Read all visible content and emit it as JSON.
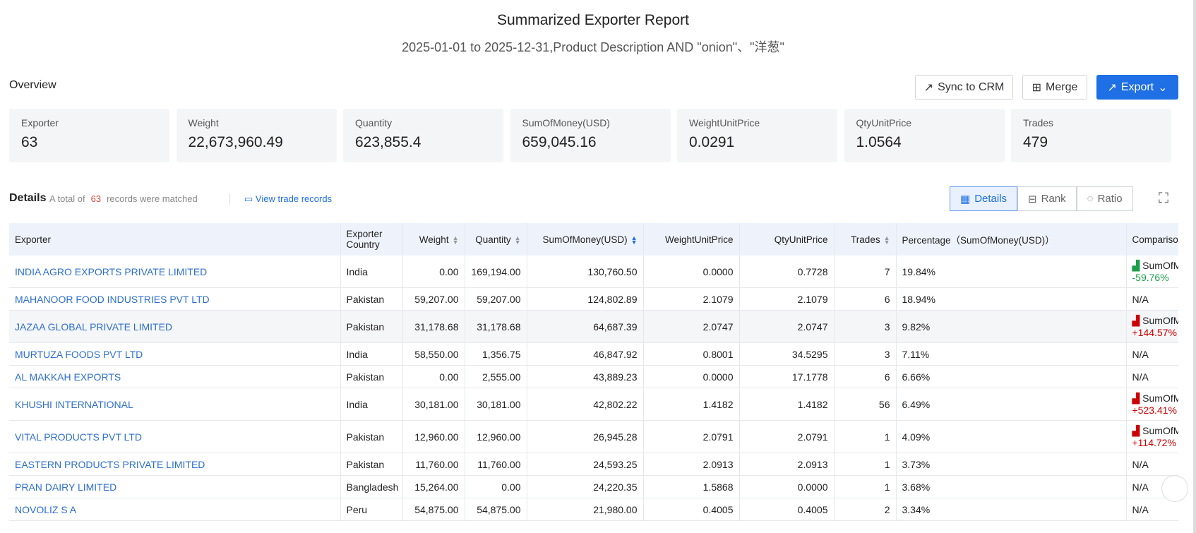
{
  "header": {
    "title": "Summarized Exporter Report",
    "subtitle": "2025-01-01 to 2025-12-31,Product Description AND \"onion\"、\"洋葱\""
  },
  "overview": {
    "label": "Overview",
    "buttons": [
      "Sync to CRM",
      "Merge",
      "Export"
    ],
    "cards": [
      {
        "label": "Exporter",
        "value": "63"
      },
      {
        "label": "Weight",
        "value": "22,673,960.49"
      },
      {
        "label": "Quantity",
        "value": "623,855.4"
      },
      {
        "label": "SumOfMoney(USD)",
        "value": "659,045.16"
      },
      {
        "label": "WeightUnitPrice",
        "value": "0.0291"
      },
      {
        "label": "QtyUnitPrice",
        "value": "1.0564"
      },
      {
        "label": "Trades",
        "value": "479"
      }
    ]
  },
  "details": {
    "label": "Details",
    "total_prefix": "A total of",
    "total": "63",
    "total_suffix": "records were matched",
    "link": "View trade records",
    "tabs": [
      "Details",
      "Rank",
      "Ratio"
    ]
  },
  "table": {
    "columns": [
      "Exporter",
      "Exporter Country",
      "Weight",
      "Quantity",
      "SumOfMoney(USD)",
      "WeightUnitPrice",
      "QtyUnitPrice",
      "Trades",
      "Percentage（SumOfMoney(USD)）",
      "Comparison"
    ],
    "rows": [
      [
        "INDIA AGRO EXPORTS PRIVATE LIMITED",
        "India",
        "0.00",
        "169,194.00",
        "130,760.50",
        "0.0000",
        "0.7728",
        "7",
        "19.84%",
        {
          "label": "SumOfMoney(USD)",
          "change": "-59.76%"
        }
      ],
      [
        "MAHANOOR FOOD INDUSTRIES PVT LTD",
        "Pakistan",
        "59,207.00",
        "59,207.00",
        "124,802.89",
        "2.1079",
        "2.1079",
        "6",
        "18.94%",
        "N/A"
      ],
      [
        "JAZAA GLOBAL PRIVATE LIMITED",
        "Pakistan",
        "31,178.68",
        "31,178.68",
        "64,687.39",
        "2.0747",
        "2.0747",
        "3",
        "9.82%",
        {
          "label": "SumOfMoney(USD)",
          "change": "+144.57%"
        }
      ],
      [
        "MURTUZA FOODS PVT LTD",
        "India",
        "58,550.00",
        "1,356.75",
        "46,847.92",
        "0.8001",
        "34.5295",
        "3",
        "7.11%",
        "N/A"
      ],
      [
        "AL MAKKAH EXPORTS",
        "Pakistan",
        "0.00",
        "2,555.00",
        "43,889.23",
        "0.0000",
        "17.1778",
        "6",
        "6.66%",
        "N/A"
      ],
      [
        "KHUSHI INTERNATIONAL",
        "India",
        "30,181.00",
        "30,181.00",
        "42,802.22",
        "1.4182",
        "1.4182",
        "56",
        "6.49%",
        {
          "label": "SumOfMoney(USD)",
          "change": "+523.41%"
        }
      ],
      [
        "VITAL PRODUCTS PVT LTD",
        "Pakistan",
        "12,960.00",
        "12,960.00",
        "26,945.28",
        "2.0791",
        "2.0791",
        "1",
        "4.09%",
        {
          "label": "SumOfMoney(USD)",
          "change": "+114.72%"
        }
      ],
      [
        "EASTERN PRODUCTS PRIVATE LIMITED",
        "Pakistan",
        "11,760.00",
        "11,760.00",
        "24,593.25",
        "2.0913",
        "2.0913",
        "1",
        "3.73%",
        "N/A"
      ],
      [
        "PRAN DAIRY LIMITED",
        "Bangladesh",
        "15,264.00",
        "0.00",
        "24,220.35",
        "1.5868",
        "0.0000",
        "1",
        "3.68%",
        "N/A"
      ],
      [
        "NOVOLIZ S A",
        "Peru",
        "54,875.00",
        "54,875.00",
        "21,980.00",
        "0.4005",
        "0.4005",
        "2",
        "3.34%",
        "N/A"
      ]
    ]
  }
}
